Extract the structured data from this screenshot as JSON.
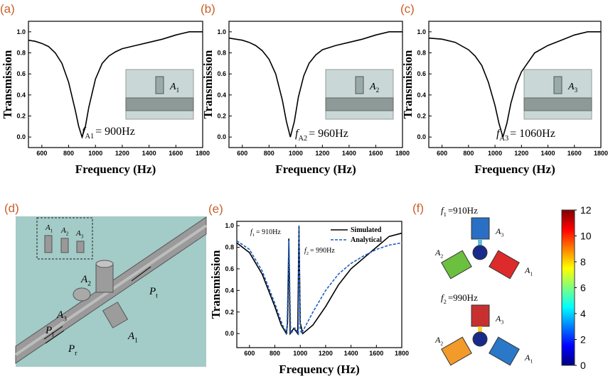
{
  "chart_data": [
    {
      "type": "line",
      "panel": "(a)",
      "xlabel": "Frequency (Hz)",
      "ylabel": "Transmission",
      "xlim": [
        500,
        1800
      ],
      "xticks": [
        600,
        800,
        1000,
        1200,
        1400,
        1600,
        1800
      ],
      "ylim": [
        -0.1,
        1.1
      ],
      "yticks": [
        {
          "value": 0,
          "label": "0.0"
        },
        0.2,
        0.4,
        0.6,
        0.8,
        {
          "value": 1,
          "label": "1.0"
        }
      ],
      "series": [
        {
          "color": "#000000",
          "x": [
            500,
            550,
            600,
            650,
            700,
            750,
            800,
            850,
            875,
            900,
            925,
            950,
            1000,
            1050,
            1100,
            1150,
            1200,
            1300,
            1400,
            1500,
            1600,
            1700,
            1800
          ],
          "values": [
            0.92,
            0.91,
            0.89,
            0.86,
            0.8,
            0.7,
            0.52,
            0.25,
            0.1,
            0.0,
            0.1,
            0.28,
            0.55,
            0.7,
            0.77,
            0.81,
            0.84,
            0.87,
            0.9,
            0.93,
            0.97,
            1.0,
            1.0
          ]
        }
      ],
      "annotations": [
        {
          "symbol": "f",
          "sub": "A1",
          "text": "= 900Hz"
        }
      ],
      "inset_label": {
        "symbol": "A",
        "sub": "1"
      }
    },
    {
      "type": "line",
      "panel": "(b)",
      "xlabel": "Frequency (Hz)",
      "ylabel": "Transmission",
      "xlim": [
        500,
        1800
      ],
      "xticks": [
        600,
        800,
        1000,
        1200,
        1400,
        1600,
        1800
      ],
      "ylim": [
        -0.1,
        1.1
      ],
      "yticks": [
        {
          "value": 0,
          "label": "0.0"
        },
        0.2,
        0.4,
        0.6,
        0.8,
        {
          "value": 1,
          "label": "1.0"
        }
      ],
      "series": [
        {
          "color": "#000000",
          "x": [
            500,
            550,
            600,
            650,
            700,
            750,
            800,
            850,
            900,
            930,
            960,
            990,
            1020,
            1060,
            1100,
            1150,
            1200,
            1300,
            1400,
            1500,
            1600,
            1700,
            1800
          ],
          "values": [
            0.94,
            0.93,
            0.92,
            0.9,
            0.87,
            0.82,
            0.74,
            0.6,
            0.35,
            0.15,
            0.0,
            0.15,
            0.38,
            0.58,
            0.7,
            0.78,
            0.83,
            0.87,
            0.9,
            0.93,
            0.97,
            1.0,
            1.0
          ]
        }
      ],
      "annotations": [
        {
          "symbol": "f",
          "sub": "A2",
          "text": "= 960Hz"
        }
      ],
      "inset_label": {
        "symbol": "A",
        "sub": "2"
      }
    },
    {
      "type": "line",
      "panel": "(c)",
      "xlabel": "Frequency (Hz)",
      "ylabel": "Transmission",
      "xlim": [
        500,
        1800
      ],
      "xticks": [
        600,
        800,
        1000,
        1200,
        1400,
        1600,
        1800
      ],
      "ylim": [
        -0.1,
        1.1
      ],
      "yticks": [
        {
          "value": 0,
          "label": "0.0"
        },
        0.2,
        0.4,
        0.6,
        0.8,
        {
          "value": 1,
          "label": "1.0"
        }
      ],
      "series": [
        {
          "color": "#000000",
          "x": [
            500,
            600,
            700,
            800,
            850,
            900,
            950,
            1000,
            1030,
            1060,
            1090,
            1120,
            1160,
            1200,
            1300,
            1400,
            1500,
            1600,
            1700,
            1800
          ],
          "values": [
            0.94,
            0.93,
            0.9,
            0.83,
            0.77,
            0.68,
            0.52,
            0.3,
            0.13,
            0.0,
            0.13,
            0.32,
            0.5,
            0.62,
            0.8,
            0.87,
            0.92,
            0.97,
            1.0,
            1.0
          ]
        }
      ],
      "annotations": [
        {
          "symbol": "f",
          "sub": "A3",
          "text": "= 1060Hz"
        }
      ],
      "inset_label": {
        "symbol": "A",
        "sub": "3"
      }
    },
    {
      "type": "line",
      "panel": "(e)",
      "xlabel": "Frequency (Hz)",
      "ylabel": "Transmission",
      "xlim": [
        500,
        1800
      ],
      "xticks": [
        600,
        800,
        1000,
        1200,
        1400,
        1600,
        1800
      ],
      "ylim": [
        -0.13,
        1.04
      ],
      "yticks": [
        {
          "value": 0,
          "label": "0.0"
        },
        0.2,
        0.4,
        0.6,
        0.8,
        {
          "value": 1,
          "label": "1.0"
        }
      ],
      "series": [
        {
          "name": "Simulated",
          "color": "#000000",
          "dash": false,
          "x": [
            500,
            600,
            700,
            800,
            850,
            890,
            900,
            910,
            920,
            950,
            980,
            990,
            1000,
            1020,
            1100,
            1200,
            1300,
            1400,
            1500,
            1600,
            1700,
            1800
          ],
          "values": [
            0.84,
            0.75,
            0.55,
            0.25,
            0.08,
            0.0,
            0.1,
            0.88,
            0.0,
            0.05,
            0.0,
            1.0,
            0.1,
            0.0,
            0.08,
            0.25,
            0.45,
            0.6,
            0.7,
            0.8,
            0.9,
            0.93
          ]
        },
        {
          "name": "Analytical",
          "color": "#1f5fbf",
          "dash": true,
          "x": [
            500,
            600,
            700,
            800,
            860,
            895,
            910,
            925,
            960,
            985,
            990,
            1000,
            1010,
            1100,
            1200,
            1300,
            1400,
            1500,
            1600,
            1700,
            1800
          ],
          "values": [
            0.86,
            0.78,
            0.58,
            0.28,
            0.08,
            0.0,
            0.86,
            0.0,
            0.05,
            0.0,
            1.0,
            0.05,
            0.0,
            0.2,
            0.4,
            0.55,
            0.65,
            0.72,
            0.78,
            0.82,
            0.84
          ]
        }
      ],
      "annotations": [
        {
          "symbol": "f",
          "sub": "1",
          "text": "= 910Hz"
        },
        {
          "symbol": "f",
          "sub": "2",
          "text": "= 990Hz"
        }
      ]
    },
    {
      "type": "colorbar",
      "ylim": [
        0,
        12
      ],
      "yticks": [
        0,
        2,
        4,
        6,
        8,
        10,
        12
      ],
      "colormap": [
        "#00007f",
        "#0000ff",
        "#007fff",
        "#00ffff",
        "#7fff7f",
        "#ffff00",
        "#ff7f00",
        "#ff0000",
        "#7f0000"
      ]
    }
  ],
  "diagrams": {
    "d": {
      "panel": "(d)",
      "labels": [
        {
          "symbol": "A",
          "sub": "1"
        },
        {
          "symbol": "A",
          "sub": "2"
        },
        {
          "symbol": "A",
          "sub": "3"
        },
        {
          "symbol": "P",
          "sub": "i"
        },
        {
          "symbol": "P",
          "sub": "r"
        },
        {
          "symbol": "P",
          "sub": "t"
        }
      ],
      "inset_labels": [
        {
          "symbol": "A",
          "sub": "1"
        },
        {
          "symbol": "A",
          "sub": "2"
        },
        {
          "symbol": "A",
          "sub": "3"
        }
      ]
    },
    "f": {
      "panel": "(f)",
      "modes": [
        {
          "freq": {
            "symbol": "f",
            "sub": "1",
            "text": "=910Hz"
          },
          "labels": [
            {
              "symbol": "A",
              "sub": "3"
            },
            {
              "symbol": "A",
              "sub": "2"
            },
            {
              "symbol": "A",
              "sub": "1"
            }
          ]
        },
        {
          "freq": {
            "symbol": "f",
            "sub": "2",
            "text": "=990Hz"
          },
          "labels": [
            {
              "symbol": "A",
              "sub": "3"
            },
            {
              "symbol": "A",
              "sub": "2"
            },
            {
              "symbol": "A",
              "sub": "1"
            }
          ]
        }
      ]
    }
  }
}
